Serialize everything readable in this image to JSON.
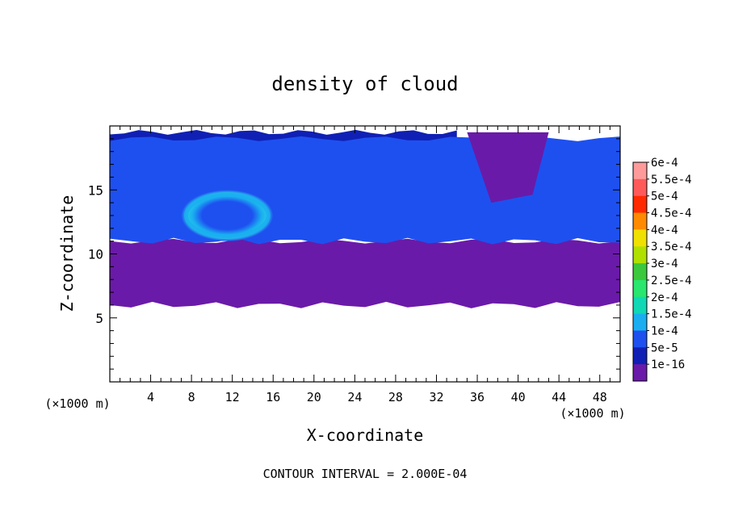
{
  "chart_data": {
    "type": "heatmap",
    "title": "density of cloud",
    "xlabel": "X-coordinate",
    "ylabel": "Z-coordinate",
    "x_unit": "(×1000 m)",
    "y_unit": "(×1000 m)",
    "xlim": [
      0,
      50
    ],
    "ylim": [
      0,
      20
    ],
    "x_ticks": [
      4,
      8,
      12,
      16,
      20,
      24,
      28,
      32,
      36,
      40,
      44,
      48
    ],
    "y_ticks": [
      5,
      10,
      15
    ],
    "footer": "CONTOUR INTERVAL = 2.000E-04",
    "grid": false,
    "colorbar": {
      "position": "right",
      "levels": [
        {
          "label": "6e-4",
          "color": "#ff9a9a"
        },
        {
          "label": "5.5e-4",
          "color": "#ff5a5a"
        },
        {
          "label": "5e-4",
          "color": "#ff2a00"
        },
        {
          "label": "4.5e-4",
          "color": "#ff8a00"
        },
        {
          "label": "4e-4",
          "color": "#f0e000"
        },
        {
          "label": "3.5e-4",
          "color": "#b0e000"
        },
        {
          "label": "3e-4",
          "color": "#3cc83c"
        },
        {
          "label": "2.5e-4",
          "color": "#28e66e"
        },
        {
          "label": "2e-4",
          "color": "#10d8b4"
        },
        {
          "label": "1.5e-4",
          "color": "#1aaef0"
        },
        {
          "label": "1e-4",
          "color": "#1e50f0"
        },
        {
          "label": "5e-5",
          "color": "#1020b4"
        },
        {
          "label": "1e-16",
          "color": "#6a1aa8"
        }
      ]
    },
    "regions": [
      {
        "level": "1e-16",
        "shape": "band",
        "x": [
          0,
          50
        ],
        "z": [
          6,
          11
        ]
      },
      {
        "level": "5e-5",
        "shape": "band",
        "x": [
          0,
          34
        ],
        "z": [
          18.5,
          19.5
        ]
      },
      {
        "level": "1e-4",
        "shape": "band",
        "x": [
          0,
          50
        ],
        "z": [
          11,
          19
        ]
      },
      {
        "level": "1.5e-4",
        "shape": "ring",
        "x": [
          7,
          16
        ],
        "z": [
          11,
          15
        ]
      },
      {
        "level": "1e-16",
        "shape": "patch",
        "x": [
          35,
          43
        ],
        "z": [
          14,
          19.5
        ]
      }
    ]
  }
}
